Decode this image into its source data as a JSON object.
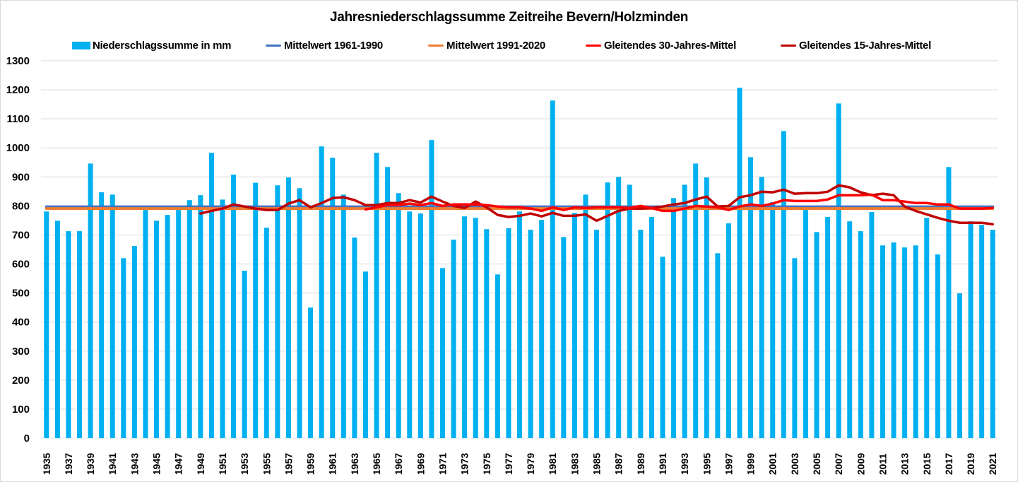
{
  "chart_data": {
    "type": "bar",
    "title": "Jahresniederschlagssumme Zeitreihe Bevern/Holzminden",
    "xlabel": "",
    "ylabel": "",
    "ylim": [
      0,
      1300
    ],
    "yticks": [
      0,
      100,
      200,
      300,
      400,
      500,
      600,
      700,
      800,
      900,
      1000,
      1100,
      1200,
      1300
    ],
    "grid": true,
    "legend_position": "top",
    "x": [
      1935,
      1936,
      1937,
      1938,
      1939,
      1940,
      1941,
      1942,
      1943,
      1944,
      1945,
      1946,
      1947,
      1948,
      1949,
      1950,
      1951,
      1952,
      1953,
      1954,
      1955,
      1956,
      1957,
      1958,
      1959,
      1960,
      1961,
      1962,
      1963,
      1964,
      1965,
      1966,
      1967,
      1968,
      1969,
      1970,
      1971,
      1972,
      1973,
      1974,
      1975,
      1976,
      1977,
      1978,
      1979,
      1980,
      1981,
      1982,
      1983,
      1984,
      1985,
      1986,
      1987,
      1988,
      1989,
      1990,
      1991,
      1992,
      1993,
      1994,
      1995,
      1996,
      1997,
      1998,
      1999,
      2000,
      2001,
      2002,
      2003,
      2004,
      2005,
      2006,
      2007,
      2008,
      2009,
      2010,
      2011,
      2012,
      2013,
      2014,
      2015,
      2016,
      2017,
      2018,
      2019,
      2020,
      2021
    ],
    "xtick_labels": [
      "1935",
      "1937",
      "1939",
      "1941",
      "1943",
      "1945",
      "1947",
      "1949",
      "1951",
      "1953",
      "1955",
      "1957",
      "1959",
      "1961",
      "1963",
      "1965",
      "1967",
      "1969",
      "1971",
      "1973",
      "1975",
      "1977",
      "1979",
      "1981",
      "1983",
      "1985",
      "1987",
      "1989",
      "1991",
      "1993",
      "1995",
      "1997",
      "1999",
      "2001",
      "2003",
      "2005",
      "2007",
      "2009",
      "2011",
      "2013",
      "2015",
      "2017",
      "2019",
      "2021"
    ],
    "series": [
      {
        "name": "Niederschlagssumme in mm",
        "kind": "bar",
        "color": "#00b0f0",
        "values": [
          781,
          749,
          713,
          713,
          946,
          847,
          839,
          620,
          662,
          786,
          749,
          769,
          786,
          820,
          837,
          983,
          822,
          908,
          577,
          880,
          725,
          871,
          898,
          861,
          450,
          1005,
          966,
          839,
          691,
          574,
          983,
          934,
          844,
          781,
          774,
          1027,
          586,
          684,
          764,
          759,
          720,
          564,
          723,
          781,
          718,
          752,
          1163,
          693,
          776,
          839,
          718,
          881,
          900,
          873,
          718,
          762,
          625,
          827,
          873,
          946,
          898,
          637,
          740,
          1207,
          968,
          900,
          813,
          1058,
          620,
          786,
          710,
          762,
          1153,
          747,
          713,
          779,
          664,
          674,
          657,
          664,
          759,
          633,
          934,
          499,
          747,
          735,
          718
        ]
      },
      {
        "name": "Mittelwert 1961-1990",
        "kind": "line",
        "color": "#4472c4",
        "constant": 797
      },
      {
        "name": "Mittelwert 1991-2020",
        "kind": "line",
        "color": "#ed7d31",
        "constant": 791
      },
      {
        "name": "Gleitendes 30-Jahres-Mittel",
        "kind": "line",
        "color": "#ff0000",
        "start_year": 1964,
        "values": [
          788,
          795,
          803,
          803,
          808,
          803,
          810,
          800,
          805,
          805,
          805,
          803,
          798,
          795,
          795,
          791,
          783,
          795,
          786,
          795,
          793,
          795,
          795,
          795,
          793,
          800,
          793,
          783,
          783,
          791,
          800,
          798,
          795,
          786,
          798,
          805,
          800,
          808,
          820,
          817,
          817,
          817,
          822,
          837,
          837,
          837,
          839,
          820,
          820,
          815,
          810,
          810,
          805,
          805,
          791,
          791,
          791,
          793
        ]
      },
      {
        "name": "Gleitendes 15-Jahres-Mittel",
        "kind": "line",
        "color": "#c00000",
        "start_year": 1949,
        "values": [
          774,
          783,
          791,
          805,
          798,
          791,
          786,
          786,
          808,
          820,
          795,
          810,
          827,
          830,
          820,
          803,
          803,
          810,
          810,
          820,
          812,
          832,
          815,
          800,
          793,
          815,
          795,
          769,
          762,
          766,
          774,
          764,
          776,
          766,
          766,
          771,
          749,
          766,
          783,
          791,
          791,
          793,
          798,
          805,
          810,
          822,
          832,
          798,
          800,
          830,
          837,
          849,
          847,
          856,
          842,
          844,
          844,
          849,
          871,
          864,
          847,
          837,
          842,
          837,
          798,
          783,
          771,
          759,
          749,
          742,
          742,
          742,
          737
        ]
      }
    ]
  }
}
